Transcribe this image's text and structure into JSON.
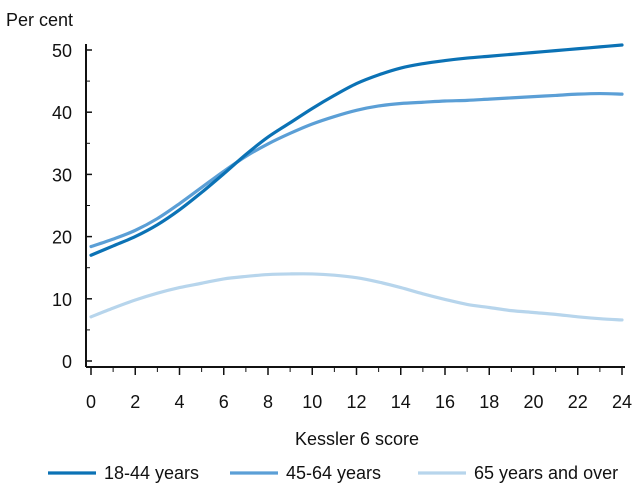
{
  "chart_data": {
    "type": "line",
    "ylabel_top": "Per cent",
    "xlabel": "Kessler 6 score",
    "xlim": [
      0,
      24
    ],
    "ylim": [
      0,
      50
    ],
    "x_ticks": [
      0,
      2,
      4,
      6,
      8,
      10,
      12,
      14,
      16,
      18,
      20,
      22,
      24
    ],
    "y_ticks": [
      0,
      10,
      20,
      30,
      40,
      50
    ],
    "grid": false,
    "legend_position": "bottom",
    "x": [
      0,
      1,
      2,
      3,
      4,
      5,
      6,
      7,
      8,
      9,
      10,
      11,
      12,
      13,
      14,
      15,
      16,
      17,
      18,
      19,
      20,
      21,
      22,
      23,
      24
    ],
    "series": [
      {
        "name": "18-44 years",
        "color": "#0b72b5",
        "values": [
          17.0,
          18.5,
          20.0,
          21.9,
          24.3,
          27.1,
          30.1,
          33.2,
          36.0,
          38.3,
          40.6,
          42.7,
          44.6,
          46.0,
          47.1,
          47.8,
          48.3,
          48.7,
          49.0,
          49.3,
          49.6,
          49.9,
          50.2,
          50.5,
          50.8
        ]
      },
      {
        "name": "45-64 years",
        "color": "#5b9fd6",
        "values": [
          18.4,
          19.6,
          21.0,
          22.9,
          25.3,
          27.9,
          30.5,
          32.9,
          34.9,
          36.6,
          38.1,
          39.3,
          40.3,
          41.0,
          41.4,
          41.6,
          41.8,
          41.9,
          42.1,
          42.3,
          42.5,
          42.7,
          42.9,
          43.0,
          42.9
        ]
      },
      {
        "name": "65 years and over",
        "color": "#b7d5ec",
        "values": [
          7.1,
          8.5,
          9.8,
          10.9,
          11.8,
          12.5,
          13.2,
          13.6,
          13.9,
          14.0,
          14.0,
          13.8,
          13.4,
          12.7,
          11.8,
          10.8,
          9.9,
          9.1,
          8.6,
          8.1,
          7.8,
          7.5,
          7.1,
          6.8,
          6.6
        ]
      }
    ]
  }
}
